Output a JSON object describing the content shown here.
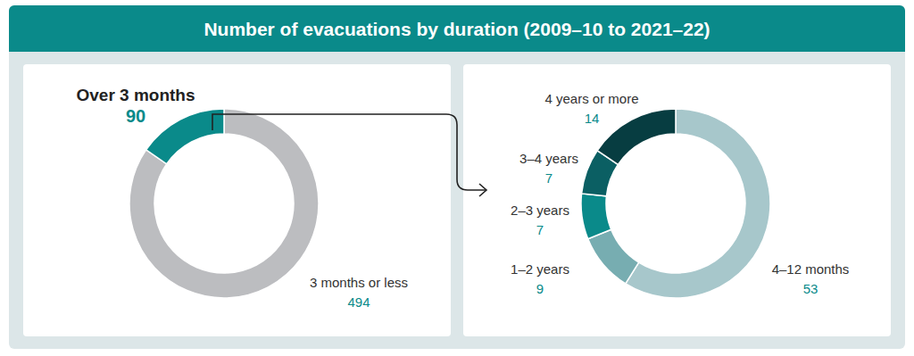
{
  "chart_data": [
    {
      "type": "pie",
      "title": "Number of evacuations by duration (2009–10 to 2021–22)",
      "categories": [
        "3 months or less",
        "Over 3 months"
      ],
      "values": [
        494,
        90
      ],
      "colors": [
        "#bcbdc0",
        "#0a8a8a"
      ],
      "data_labels": true
    },
    {
      "type": "pie",
      "categories": [
        "4–12 months",
        "1–2 years",
        "2–3 years",
        "3–4 years",
        "4 years or more"
      ],
      "values": [
        53,
        9,
        7,
        7,
        14
      ],
      "colors": [
        "#a7c7cb",
        "#77adb1",
        "#0a8a8a",
        "#0b5f63",
        "#073d41"
      ],
      "data_labels": true
    }
  ]
}
